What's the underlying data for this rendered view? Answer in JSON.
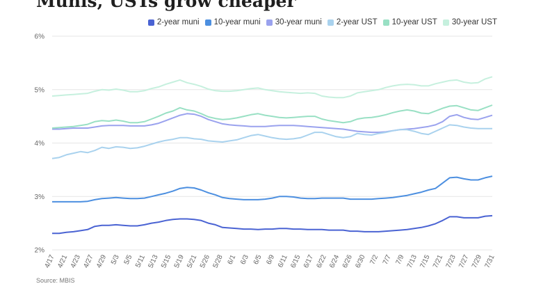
{
  "header": {
    "title": "Munis, USTs grow cheaper"
  },
  "footer": {
    "source": "Source: MBIS"
  },
  "chart_data": {
    "type": "line",
    "title": "Munis, USTs grow cheaper",
    "xlabel": "",
    "ylabel": "",
    "ylim": [
      2,
      6
    ],
    "yticks": [
      "2%",
      "3%",
      "4%",
      "5%",
      "6%"
    ],
    "grid": true,
    "legend_position": "top-right",
    "x_tick_labels": [
      "4/17",
      "4/21",
      "4/23",
      "4/27",
      "4/29",
      "5/3",
      "5/5",
      "5/11",
      "5/13",
      "5/15",
      "5/19",
      "5/21",
      "5/26",
      "5/28",
      "6/1",
      "6/3",
      "6/5",
      "6/9",
      "6/11",
      "6/15",
      "6/17",
      "6/22",
      "6/24",
      "6/26",
      "6/30",
      "7/2",
      "7/7",
      "7/9",
      "7/13",
      "7/15",
      "7/21",
      "7/23",
      "7/27",
      "7/29",
      "7/31"
    ],
    "series": [
      {
        "name": "2-year muni",
        "color": "#4a63d3",
        "values": [
          2.31,
          2.31,
          2.33,
          2.34,
          2.36,
          2.38,
          2.44,
          2.46,
          2.46,
          2.47,
          2.46,
          2.45,
          2.45,
          2.47,
          2.5,
          2.52,
          2.55,
          2.57,
          2.58,
          2.58,
          2.57,
          2.55,
          2.5,
          2.47,
          2.42,
          2.41,
          2.4,
          2.39,
          2.39,
          2.38,
          2.39,
          2.39,
          2.4,
          2.4,
          2.39,
          2.39,
          2.38,
          2.38,
          2.38,
          2.37,
          2.37,
          2.37,
          2.35,
          2.35,
          2.34,
          2.34,
          2.34,
          2.35,
          2.36,
          2.37,
          2.38,
          2.4,
          2.42,
          2.45,
          2.49,
          2.55,
          2.62,
          2.62,
          2.6,
          2.6,
          2.6,
          2.63,
          2.64
        ]
      },
      {
        "name": "10-year muni",
        "color": "#4c8fe0",
        "values": [
          2.9,
          2.9,
          2.9,
          2.9,
          2.9,
          2.91,
          2.94,
          2.96,
          2.97,
          2.98,
          2.97,
          2.96,
          2.96,
          2.97,
          3.0,
          3.03,
          3.06,
          3.1,
          3.15,
          3.17,
          3.16,
          3.12,
          3.07,
          3.03,
          2.98,
          2.96,
          2.95,
          2.94,
          2.94,
          2.94,
          2.95,
          2.97,
          3.0,
          3.0,
          2.99,
          2.97,
          2.96,
          2.96,
          2.97,
          2.97,
          2.97,
          2.97,
          2.95,
          2.95,
          2.95,
          2.95,
          2.96,
          2.97,
          2.98,
          3.0,
          3.02,
          3.05,
          3.08,
          3.12,
          3.15,
          3.25,
          3.35,
          3.36,
          3.33,
          3.31,
          3.31,
          3.35,
          3.38
        ]
      },
      {
        "name": "30-year muni",
        "color": "#9aa2ee",
        "values": [
          4.26,
          4.26,
          4.27,
          4.28,
          4.28,
          4.28,
          4.3,
          4.32,
          4.33,
          4.33,
          4.33,
          4.32,
          4.32,
          4.32,
          4.34,
          4.37,
          4.42,
          4.47,
          4.52,
          4.55,
          4.54,
          4.5,
          4.44,
          4.4,
          4.36,
          4.34,
          4.33,
          4.32,
          4.31,
          4.31,
          4.31,
          4.32,
          4.33,
          4.33,
          4.33,
          4.32,
          4.31,
          4.3,
          4.29,
          4.28,
          4.27,
          4.26,
          4.24,
          4.22,
          4.21,
          4.2,
          4.2,
          4.21,
          4.23,
          4.25,
          4.26,
          4.27,
          4.29,
          4.31,
          4.34,
          4.4,
          4.5,
          4.53,
          4.48,
          4.45,
          4.44,
          4.48,
          4.52
        ]
      },
      {
        "name": "2-year UST",
        "color": "#a9d2ee",
        "values": [
          3.71,
          3.73,
          3.78,
          3.81,
          3.84,
          3.82,
          3.86,
          3.92,
          3.9,
          3.93,
          3.92,
          3.9,
          3.91,
          3.94,
          3.98,
          4.02,
          4.05,
          4.07,
          4.1,
          4.1,
          4.08,
          4.07,
          4.04,
          4.03,
          4.02,
          4.04,
          4.06,
          4.1,
          4.14,
          4.16,
          4.13,
          4.1,
          4.08,
          4.07,
          4.08,
          4.1,
          4.15,
          4.2,
          4.2,
          4.16,
          4.12,
          4.1,
          4.12,
          4.18,
          4.16,
          4.15,
          4.18,
          4.2,
          4.23,
          4.25,
          4.25,
          4.22,
          4.18,
          4.16,
          4.22,
          4.28,
          4.34,
          4.33,
          4.3,
          4.28,
          4.27,
          4.27,
          4.27
        ]
      },
      {
        "name": "10-year UST",
        "color": "#99e0c4",
        "values": [
          4.28,
          4.29,
          4.3,
          4.31,
          4.33,
          4.35,
          4.4,
          4.42,
          4.41,
          4.43,
          4.41,
          4.38,
          4.38,
          4.4,
          4.45,
          4.5,
          4.56,
          4.6,
          4.66,
          4.62,
          4.6,
          4.55,
          4.49,
          4.46,
          4.44,
          4.45,
          4.47,
          4.5,
          4.53,
          4.55,
          4.52,
          4.5,
          4.48,
          4.47,
          4.48,
          4.49,
          4.5,
          4.5,
          4.45,
          4.42,
          4.4,
          4.38,
          4.4,
          4.45,
          4.47,
          4.48,
          4.5,
          4.53,
          4.57,
          4.6,
          4.62,
          4.6,
          4.56,
          4.55,
          4.6,
          4.65,
          4.69,
          4.7,
          4.66,
          4.62,
          4.61,
          4.66,
          4.71
        ]
      },
      {
        "name": "30-year UST",
        "color": "#c6f0de",
        "values": [
          4.88,
          4.89,
          4.9,
          4.91,
          4.92,
          4.93,
          4.97,
          5.0,
          4.99,
          5.01,
          4.99,
          4.96,
          4.96,
          4.98,
          5.02,
          5.05,
          5.1,
          5.14,
          5.18,
          5.13,
          5.1,
          5.06,
          5.01,
          4.98,
          4.97,
          4.97,
          4.98,
          5.0,
          5.02,
          5.03,
          5.0,
          4.98,
          4.96,
          4.95,
          4.94,
          4.93,
          4.94,
          4.93,
          4.88,
          4.86,
          4.85,
          4.85,
          4.88,
          4.94,
          4.96,
          4.98,
          5.0,
          5.04,
          5.07,
          5.09,
          5.1,
          5.09,
          5.07,
          5.07,
          5.11,
          5.14,
          5.17,
          5.18,
          5.14,
          5.12,
          5.13,
          5.2,
          5.24
        ]
      }
    ]
  }
}
